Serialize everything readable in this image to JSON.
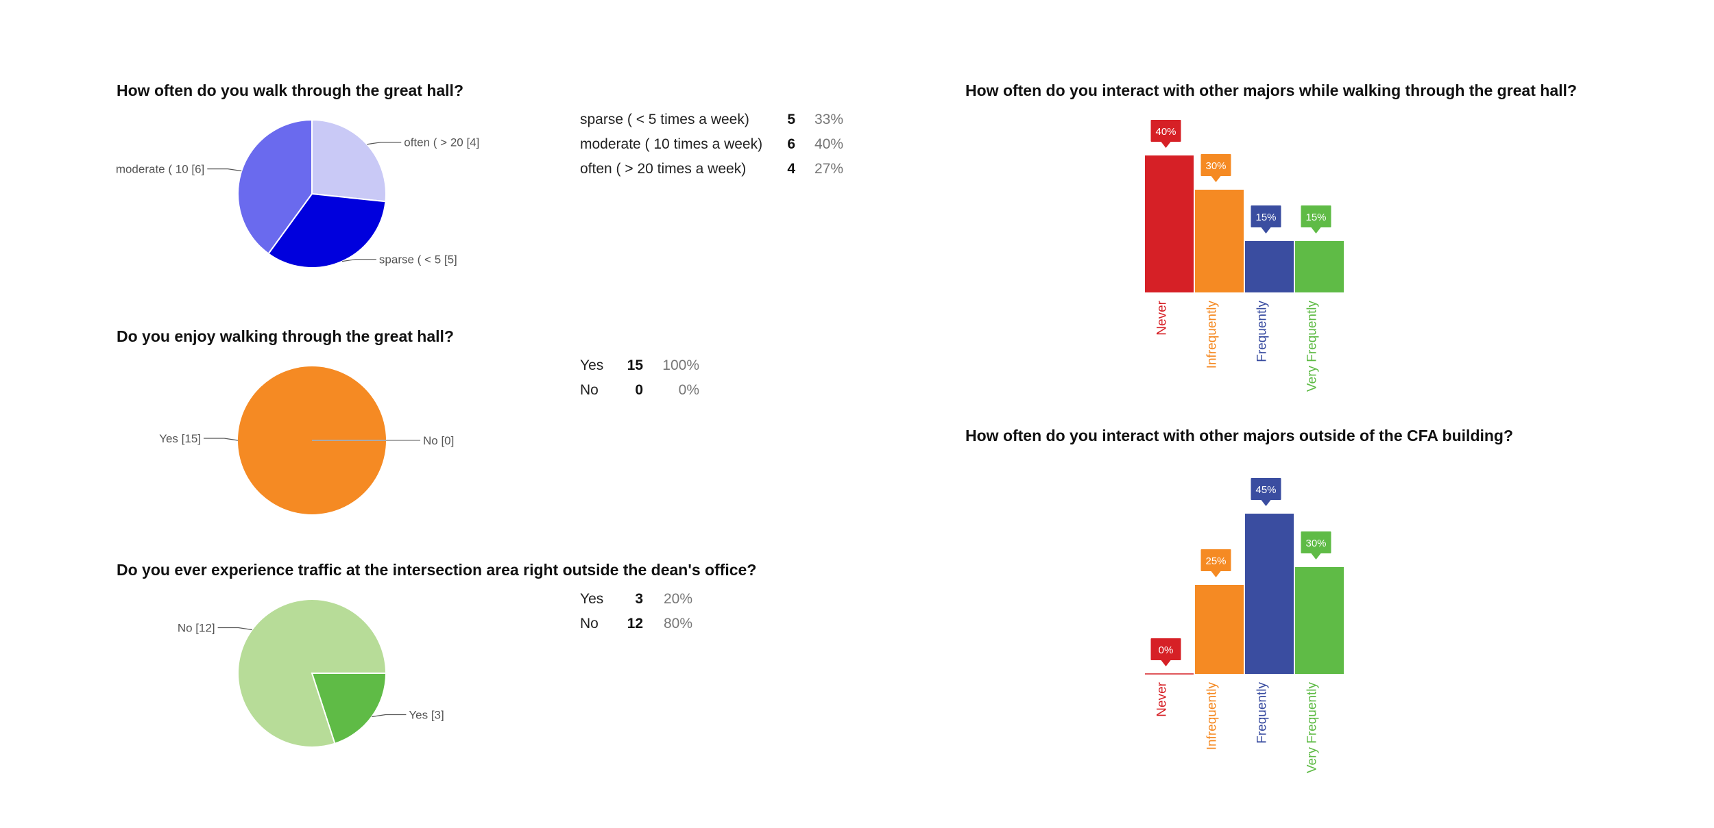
{
  "chart_data": [
    {
      "type": "pie",
      "title": "How often do you walk through the great hall?",
      "slices": [
        {
          "label": "sparse ( < 5 times a week)",
          "value": 5,
          "percent": "33%",
          "pie_label": "sparse ( < 5  [5]",
          "color": "#0000dd"
        },
        {
          "label": "moderate ( 10 times a week)",
          "value": 6,
          "percent": "40%",
          "pie_label": "moderate ( 10 [6]",
          "color": "#6a6aee"
        },
        {
          "label": "often ( > 20 times a week)",
          "value": 4,
          "percent": "27%",
          "pie_label": "often ( > 20  [4]",
          "color": "#c9c9f6"
        }
      ]
    },
    {
      "type": "pie",
      "title": "Do you enjoy walking through the great hall?",
      "slices": [
        {
          "label": "Yes",
          "value": 15,
          "percent": "100%",
          "pie_label": "Yes [15]",
          "color": "#f58a23"
        },
        {
          "label": "No",
          "value": 0,
          "percent": "0%",
          "pie_label": "No [0]",
          "color": "#fbc68d"
        }
      ]
    },
    {
      "type": "pie",
      "title": "Do you ever experience traffic at the intersection area right outside the dean's office?",
      "slices": [
        {
          "label": "Yes",
          "value": 3,
          "percent": "20%",
          "pie_label": "Yes [3]",
          "color": "#5fbb46"
        },
        {
          "label": "No",
          "value": 12,
          "percent": "80%",
          "pie_label": "No [12]",
          "color": "#b7dc98"
        }
      ]
    },
    {
      "type": "bar",
      "title": "How often do you interact with other majors while walking through the great hall?",
      "categories": [
        "Never",
        "Infrequently",
        "Frequently",
        "Very Frequently"
      ],
      "values": [
        40,
        30,
        15,
        15
      ],
      "labels": [
        "40%",
        "30%",
        "15%",
        "15%"
      ],
      "colors": [
        "#d62026",
        "#f58a23",
        "#3a4da0",
        "#5fbb46"
      ],
      "ylim": [
        0,
        100
      ]
    },
    {
      "type": "bar",
      "title": "How often do you interact with other majors outside of the CFA building?",
      "categories": [
        "Never",
        "Infrequently",
        "Frequently",
        "Very Frequently"
      ],
      "values": [
        0,
        25,
        45,
        30
      ],
      "labels": [
        "0%",
        "25%",
        "45%",
        "30%"
      ],
      "colors": [
        "#d62026",
        "#f58a23",
        "#3a4da0",
        "#5fbb46"
      ],
      "ylim": [
        0,
        100
      ]
    }
  ]
}
